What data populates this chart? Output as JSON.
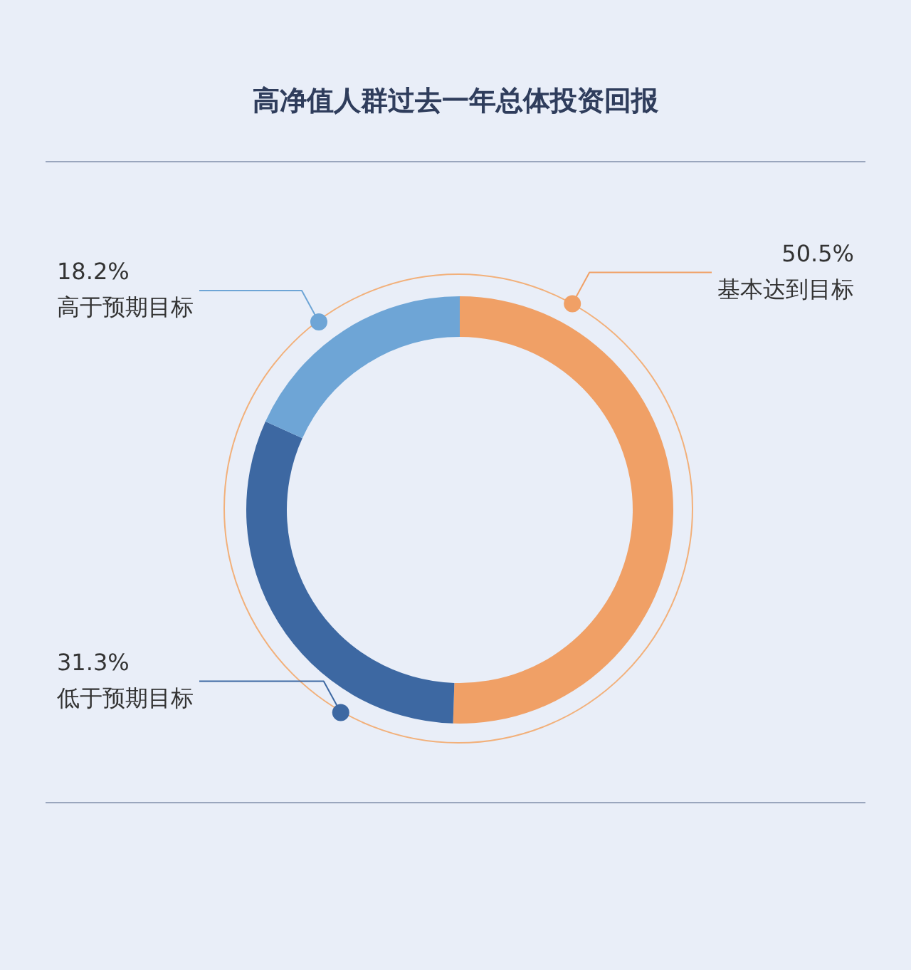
{
  "chart_data": {
    "type": "donut",
    "title": "高净值人群过去一年总体投资回报",
    "categories": [
      "基本达到目标",
      "低于预期目标",
      "高于预期目标"
    ],
    "values": [
      50.5,
      31.3,
      18.2
    ],
    "value_labels": [
      "50.5%",
      "31.3%",
      "18.2%"
    ],
    "colors": [
      "#f0a066",
      "#3d68a2",
      "#6ea5d6"
    ]
  }
}
